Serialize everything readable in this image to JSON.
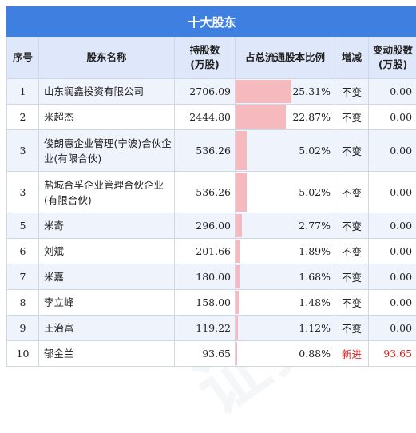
{
  "table": {
    "title": "十大股东",
    "headers": {
      "idx": "序号",
      "name": "股东名称",
      "shares": [
        "持股数",
        "(万股)"
      ],
      "ratio": "占总流通股本比例",
      "change": "增减",
      "change_amount": [
        "变动股数",
        "(万股)"
      ]
    },
    "rows": [
      {
        "idx": "1",
        "name": "山东润鑫投资有限公司",
        "shares": "2706.09",
        "ratio": "25.31%",
        "ratio_value": 25.31,
        "change": "不变",
        "change_amount": "0.00"
      },
      {
        "idx": "2",
        "name": "米超杰",
        "shares": "2444.80",
        "ratio": "22.87%",
        "ratio_value": 22.87,
        "change": "不变",
        "change_amount": "0.00"
      },
      {
        "idx": "3",
        "name": "俊朗惠企业管理(宁波)合伙企业(有限合伙)",
        "shares": "536.26",
        "ratio": "5.02%",
        "ratio_value": 5.02,
        "change": "不变",
        "change_amount": "0.00"
      },
      {
        "idx": "3",
        "name": "盐城合孚企业管理合伙企业(有限合伙)",
        "shares": "536.26",
        "ratio": "5.02%",
        "ratio_value": 5.02,
        "change": "不变",
        "change_amount": "0.00"
      },
      {
        "idx": "5",
        "name": "米奇",
        "shares": "296.00",
        "ratio": "2.77%",
        "ratio_value": 2.77,
        "change": "不变",
        "change_amount": "0.00"
      },
      {
        "idx": "6",
        "name": "刘斌",
        "shares": "201.66",
        "ratio": "1.89%",
        "ratio_value": 1.89,
        "change": "不变",
        "change_amount": "0.00"
      },
      {
        "idx": "7",
        "name": "米嘉",
        "shares": "180.00",
        "ratio": "1.68%",
        "ratio_value": 1.68,
        "change": "不变",
        "change_amount": "0.00"
      },
      {
        "idx": "8",
        "name": "李立峰",
        "shares": "158.00",
        "ratio": "1.48%",
        "ratio_value": 1.48,
        "change": "不变",
        "change_amount": "0.00"
      },
      {
        "idx": "9",
        "name": "王治富",
        "shares": "119.22",
        "ratio": "1.12%",
        "ratio_value": 1.12,
        "change": "不变",
        "change_amount": "0.00"
      },
      {
        "idx": "10",
        "name": "郁金兰",
        "shares": "93.65",
        "ratio": "0.88%",
        "ratio_value": 0.88,
        "change": "新进",
        "change_amount": "93.65"
      }
    ]
  },
  "colors": {
    "header_bg": "#3f7fe0",
    "subheader_bg": "#dfe8fb",
    "bar": "#f6b9be",
    "new_text": "#e02020"
  }
}
